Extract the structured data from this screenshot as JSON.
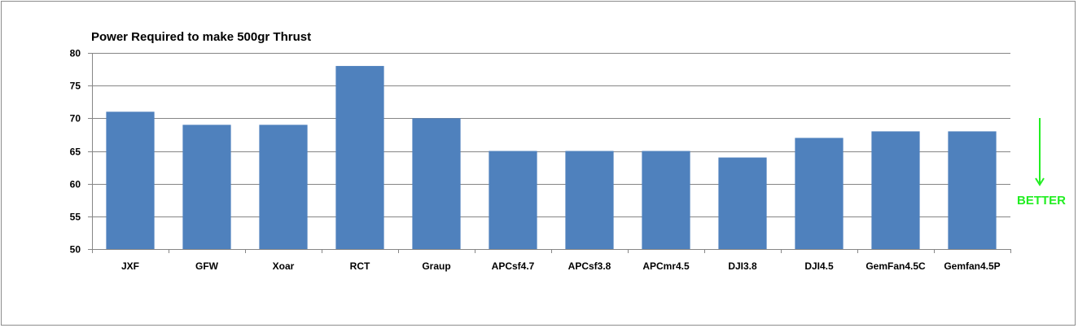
{
  "chart_data": {
    "type": "bar",
    "title": "Power  Required to make 500gr Thrust",
    "xlabel": "",
    "ylabel": "",
    "categories": [
      "JXF",
      "GFW",
      "Xoar",
      "RCT",
      "Graup",
      "APCsf4.7",
      "APCsf3.8",
      "APCmr4.5",
      "DJI3.8",
      "DJI4.5",
      "GemFan4.5C",
      "Gemfan4.5P"
    ],
    "values": [
      71,
      69,
      69,
      78,
      70,
      65,
      65,
      65,
      64,
      67,
      68,
      68
    ],
    "ylim": [
      50,
      80
    ],
    "yticks": [
      50,
      55,
      60,
      65,
      70,
      75,
      80
    ],
    "grid": true,
    "legend": "none",
    "bar_color": "#4F81BD",
    "annotation": {
      "text": "BETTER",
      "color": "#22EE22",
      "arrow": "down"
    }
  }
}
